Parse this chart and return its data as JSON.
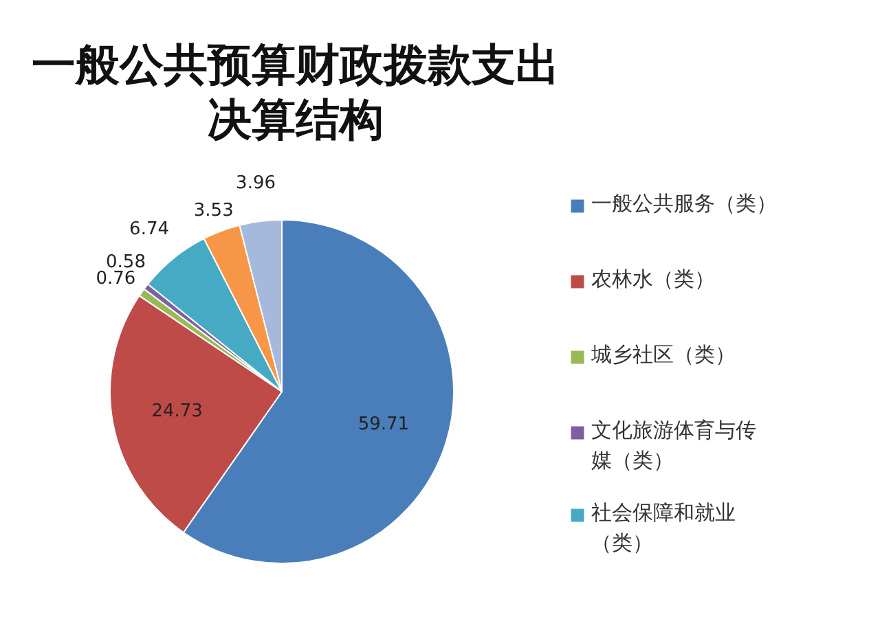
{
  "chart_data": {
    "type": "pie",
    "title": "一般公共预算财政拨款支出决算结构",
    "categories": [
      "一般公共服务（类）",
      "农林水（类）",
      "城乡社区（类）",
      "文化旅游体育与传媒（类）",
      "社会保障和就业（类）",
      null,
      null
    ],
    "values": [
      59.71,
      24.73,
      0.76,
      0.58,
      6.74,
      3.53,
      3.96
    ],
    "colors": [
      "#4a7ebb",
      "#be4b48",
      "#98b954",
      "#7d60a0",
      "#46aac5",
      "#f79646",
      "#a5b9dd"
    ],
    "data_labels": true,
    "legend": "right"
  }
}
